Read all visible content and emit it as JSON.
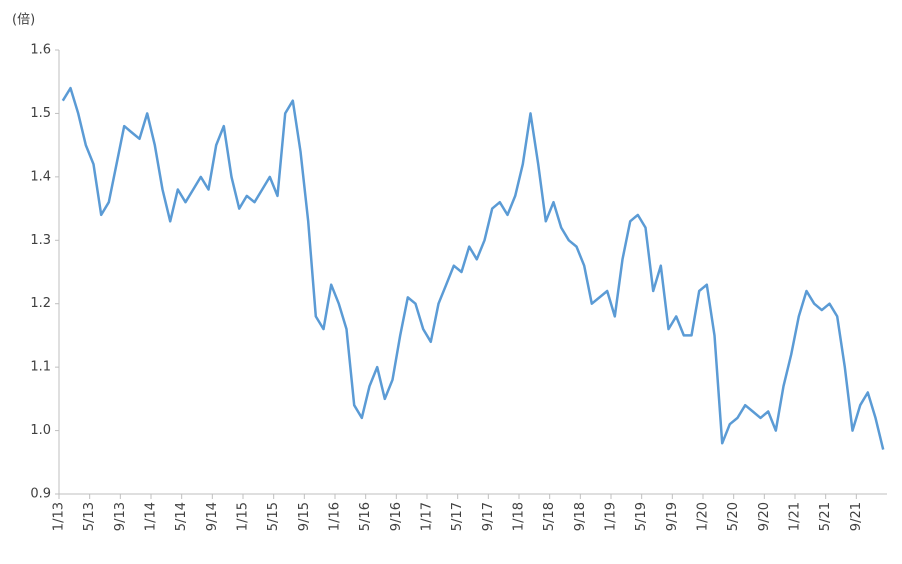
{
  "chart_data": {
    "type": "line",
    "y_axis_label": "(倍)",
    "categories": [
      "1/13",
      null,
      null,
      null,
      "5/13",
      null,
      null,
      null,
      "9/13",
      null,
      null,
      null,
      "1/14",
      null,
      null,
      null,
      "5/14",
      null,
      null,
      null,
      "9/14",
      null,
      null,
      null,
      "1/15",
      null,
      null,
      null,
      "5/15",
      null,
      null,
      null,
      "9/15",
      null,
      null,
      null,
      "1/16",
      null,
      null,
      null,
      "5/16",
      null,
      null,
      null,
      "9/16",
      null,
      null,
      null,
      "1/17",
      null,
      null,
      null,
      "5/17",
      null,
      null,
      null,
      "9/17",
      null,
      null,
      null,
      "1/18",
      null,
      null,
      null,
      "5/18",
      null,
      null,
      null,
      "9/18",
      null,
      null,
      null,
      "1/19",
      null,
      null,
      null,
      "5/19",
      null,
      null,
      null,
      "9/19",
      null,
      null,
      null,
      "1/20",
      null,
      null,
      null,
      "5/20",
      null,
      null,
      null,
      "9/20",
      null,
      null,
      null,
      "1/21",
      null,
      null,
      null,
      "5/21",
      null,
      null,
      null,
      "9/21",
      null,
      null,
      null
    ],
    "series": [
      {
        "color": "#5b9bd5",
        "values": [
          1.52,
          1.54,
          1.5,
          1.45,
          1.42,
          1.34,
          1.36,
          1.42,
          1.48,
          1.47,
          1.46,
          1.5,
          1.45,
          1.38,
          1.33,
          1.38,
          1.36,
          1.38,
          1.4,
          1.38,
          1.45,
          1.48,
          1.4,
          1.35,
          1.37,
          1.36,
          1.38,
          1.4,
          1.37,
          1.5,
          1.52,
          1.44,
          1.33,
          1.18,
          1.16,
          1.23,
          1.2,
          1.16,
          1.04,
          1.02,
          1.07,
          1.1,
          1.05,
          1.08,
          1.15,
          1.21,
          1.2,
          1.16,
          1.14,
          1.2,
          1.23,
          1.26,
          1.25,
          1.29,
          1.27,
          1.3,
          1.35,
          1.36,
          1.34,
          1.37,
          1.42,
          1.5,
          1.42,
          1.33,
          1.36,
          1.32,
          1.3,
          1.29,
          1.26,
          1.2,
          1.21,
          1.22,
          1.18,
          1.27,
          1.33,
          1.34,
          1.32,
          1.22,
          1.26,
          1.16,
          1.18,
          1.15,
          1.15,
          1.22,
          1.23,
          1.15,
          0.98,
          1.01,
          1.02,
          1.04,
          1.03,
          1.02,
          1.03,
          1.0,
          1.07,
          1.12,
          1.18,
          1.22,
          1.2,
          1.19,
          1.2,
          1.18,
          1.1,
          1.0,
          1.04,
          1.06,
          1.02,
          0.97
        ]
      }
    ],
    "ylim": [
      0.9,
      1.6
    ],
    "yticks": [
      0.9,
      {
        "value": 1,
        "label": "1.0"
      },
      1.1,
      1.2,
      1.3,
      1.4,
      1.5,
      1.6
    ],
    "grid": false
  }
}
